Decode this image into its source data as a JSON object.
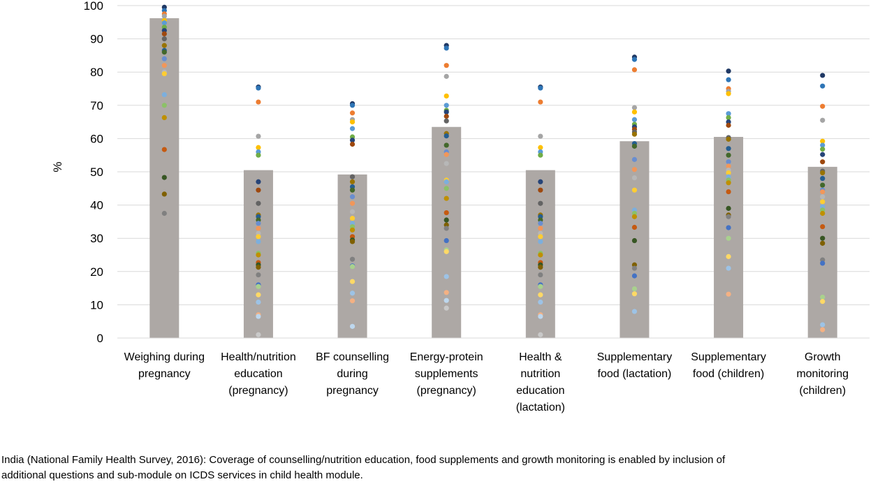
{
  "chart_data": {
    "type": "bar",
    "title": "",
    "xlabel": "",
    "ylabel": "%",
    "ylim": [
      0,
      100
    ],
    "yticks": [
      0,
      10,
      20,
      30,
      40,
      50,
      60,
      70,
      80,
      90,
      100
    ],
    "grid": true,
    "legend": "none",
    "bar_color": "#ada8a5",
    "categories": [
      [
        "Weighing during",
        "pregnancy"
      ],
      [
        "Health/nutrition",
        "education",
        "(pregnancy)"
      ],
      [
        "BF counselling",
        "during",
        "pregnancy"
      ],
      [
        "Energy-protein",
        "supplements",
        "(pregnancy)"
      ],
      [
        "Health &",
        "nutrition",
        "education",
        "(lactation)"
      ],
      [
        "Supplementary",
        "food (lactation)"
      ],
      [
        "Supplementary",
        "food (children)"
      ],
      [
        "Growth",
        "monitoring",
        "(children)"
      ]
    ],
    "values": [
      96.2,
      50.5,
      49.2,
      63.5,
      50.5,
      59.2,
      60.5,
      51.5
    ],
    "series_points": [
      [
        99.5,
        98.5,
        97.5,
        96.8,
        95.5,
        94.8,
        93.5,
        92.5,
        91.5,
        90.0,
        88.0,
        86.5,
        86.0,
        84.0,
        82.0,
        80.0,
        79.5,
        73.2,
        70.0,
        66.3,
        56.7,
        48.3,
        43.3,
        37.5
      ],
      [
        75.5,
        75.2,
        71.0,
        60.7,
        57.3,
        56.0,
        55.0,
        47.0,
        44.5,
        40.5,
        37.0,
        36.5,
        35.5,
        34.5,
        33.0,
        31.5,
        30.5,
        29.0,
        25.5,
        25.0,
        22.7,
        22.0,
        21.3,
        19.0,
        16.0,
        15.5,
        13.0,
        10.8,
        7.0,
        6.5,
        1.0
      ],
      [
        70.5,
        70.0,
        67.7,
        65.7,
        65.0,
        63.0,
        60.5,
        59.5,
        58.3,
        48.5,
        47.0,
        45.5,
        44.5,
        42.5,
        40.5,
        38.0,
        36.0,
        34.5,
        33.5,
        32.5,
        30.5,
        29.5,
        29.0,
        23.7,
        21.7,
        21.5,
        17.0,
        13.5,
        11.2,
        3.5
      ],
      [
        88.0,
        87.2,
        82.0,
        78.7,
        72.8,
        70.0,
        68.5,
        68.0,
        66.7,
        65.3,
        61.5,
        60.8,
        58.0,
        56.0,
        55.2,
        52.5,
        47.5,
        47.0,
        45.0,
        42.0,
        37.7,
        35.5,
        34.0,
        33.0,
        29.3,
        26.5,
        26.0,
        18.5,
        13.7,
        11.3,
        9.0
      ],
      [
        75.5,
        75.2,
        71.0,
        60.7,
        57.3,
        56.0,
        55.0,
        47.0,
        44.5,
        40.5,
        37.0,
        36.5,
        35.5,
        34.5,
        33.0,
        31.5,
        30.5,
        29.0,
        25.5,
        25.0,
        22.7,
        22.0,
        21.3,
        19.0,
        16.0,
        15.5,
        13.0,
        10.8,
        7.0,
        6.5,
        1.0
      ],
      [
        84.5,
        83.8,
        80.7,
        69.3,
        68.0,
        65.7,
        64.3,
        63.5,
        62.8,
        62.0,
        61.3,
        58.5,
        57.7,
        53.7,
        50.7,
        48.2,
        44.5,
        38.5,
        37.5,
        36.5,
        33.3,
        29.3,
        22.0,
        21.0,
        18.7,
        14.8,
        13.3,
        8.0
      ],
      [
        80.3,
        77.7,
        75.0,
        74.2,
        73.5,
        67.5,
        66.3,
        65.0,
        64.0,
        60.3,
        59.8,
        57.0,
        55.0,
        53.0,
        51.7,
        50.5,
        49.7,
        48.5,
        47.5,
        46.7,
        44.0,
        39.0,
        37.0,
        36.5,
        33.2,
        30.0,
        24.5,
        21.0,
        13.2
      ],
      [
        79.0,
        75.8,
        69.7,
        65.5,
        59.2,
        58.0,
        56.8,
        55.2,
        53.0,
        50.2,
        49.7,
        48.0,
        46.0,
        44.5,
        44.0,
        42.5,
        41.0,
        39.5,
        38.5,
        37.5,
        33.5,
        30.0,
        28.5,
        23.5,
        22.5,
        12.3,
        11.0,
        4.0,
        2.5
      ]
    ],
    "dot_colors": [
      "#1f3864",
      "#2e75b6",
      "#ed7d31",
      "#a5a5a5",
      "#ffc000",
      "#5b9bd5",
      "#70ad47",
      "#264478",
      "#9e480e",
      "#636363",
      "#997300",
      "#255e91",
      "#43682b",
      "#698ed0",
      "#f1975a",
      "#b7b7b7",
      "#ffcd33",
      "#7cafdd",
      "#8cc168",
      "#bf9000",
      "#c55a11",
      "#375623",
      "#7f6000",
      "#808080",
      "#4472c4",
      "#a9d18e",
      "#ffd966",
      "#9dc3e6",
      "#f4b183",
      "#bdd7ee",
      "#c9c9c9"
    ]
  },
  "caption": {
    "line1": "India (National Family Health Survey, 2016):  Coverage of counselling/nutrition education, food supplements and growth monitoring is enabled by inclusion of",
    "line2": "additional questions and sub-module on ICDS services in child health module."
  }
}
